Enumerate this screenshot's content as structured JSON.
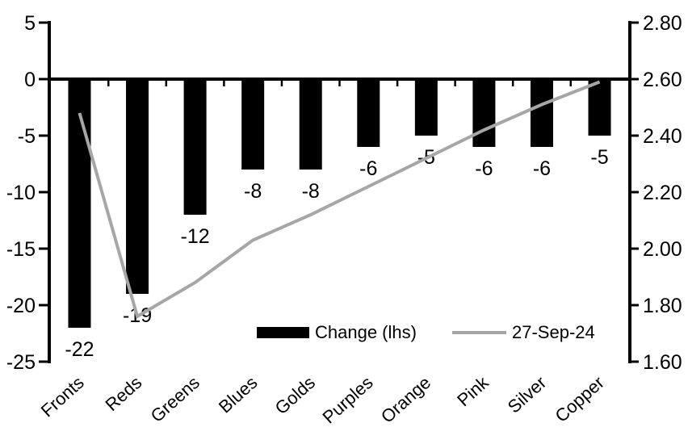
{
  "chart_data": {
    "type": "combo-bar-line",
    "title": "",
    "xlabel": "",
    "ylabel_left": "",
    "ylabel_right": "",
    "grid": false,
    "background": "#ffffff",
    "categories": [
      "Fronts",
      "Reds",
      "Greens",
      "Blues",
      "Golds",
      "Purples",
      "Orange",
      "Pink",
      "Silver",
      "Copper"
    ],
    "series": [
      {
        "name": "Change (lhs)",
        "type": "bar",
        "axis": "left",
        "color": "#000000",
        "values": [
          -22,
          -19,
          -12,
          -8,
          -8,
          -6,
          -5,
          -6,
          -6,
          -5
        ],
        "data_labels": [
          "-22",
          "-19",
          "-12",
          "-8",
          "-8",
          "-6",
          "-5",
          "-6",
          "-6",
          "-5"
        ]
      },
      {
        "name": "27-Sep-24",
        "type": "line",
        "axis": "right",
        "color": "#a6a6a6",
        "values": [
          2.48,
          1.76,
          1.88,
          2.03,
          2.12,
          2.22,
          2.32,
          2.42,
          2.51,
          2.59
        ]
      }
    ],
    "left_axis": {
      "min": -25,
      "max": 5,
      "tick_step": 5,
      "ticks": [
        "5",
        "0",
        "-5",
        "-10",
        "-15",
        "-20",
        "-25"
      ]
    },
    "right_axis": {
      "min": 1.6,
      "max": 2.8,
      "tick_step": 0.2,
      "ticks": [
        "2.80",
        "2.60",
        "2.40",
        "2.20",
        "2.00",
        "1.80",
        "1.60"
      ]
    },
    "legend": {
      "position": "inside-bottom-center",
      "items": [
        {
          "label": "Change (lhs)",
          "swatch": "bar",
          "color": "#000000"
        },
        {
          "label": "27-Sep-24",
          "swatch": "line",
          "color": "#a6a6a6"
        }
      ]
    },
    "colors": {
      "bar": "#000000",
      "line": "#a6a6a6",
      "axis": "#000000",
      "text": "#000000"
    }
  }
}
